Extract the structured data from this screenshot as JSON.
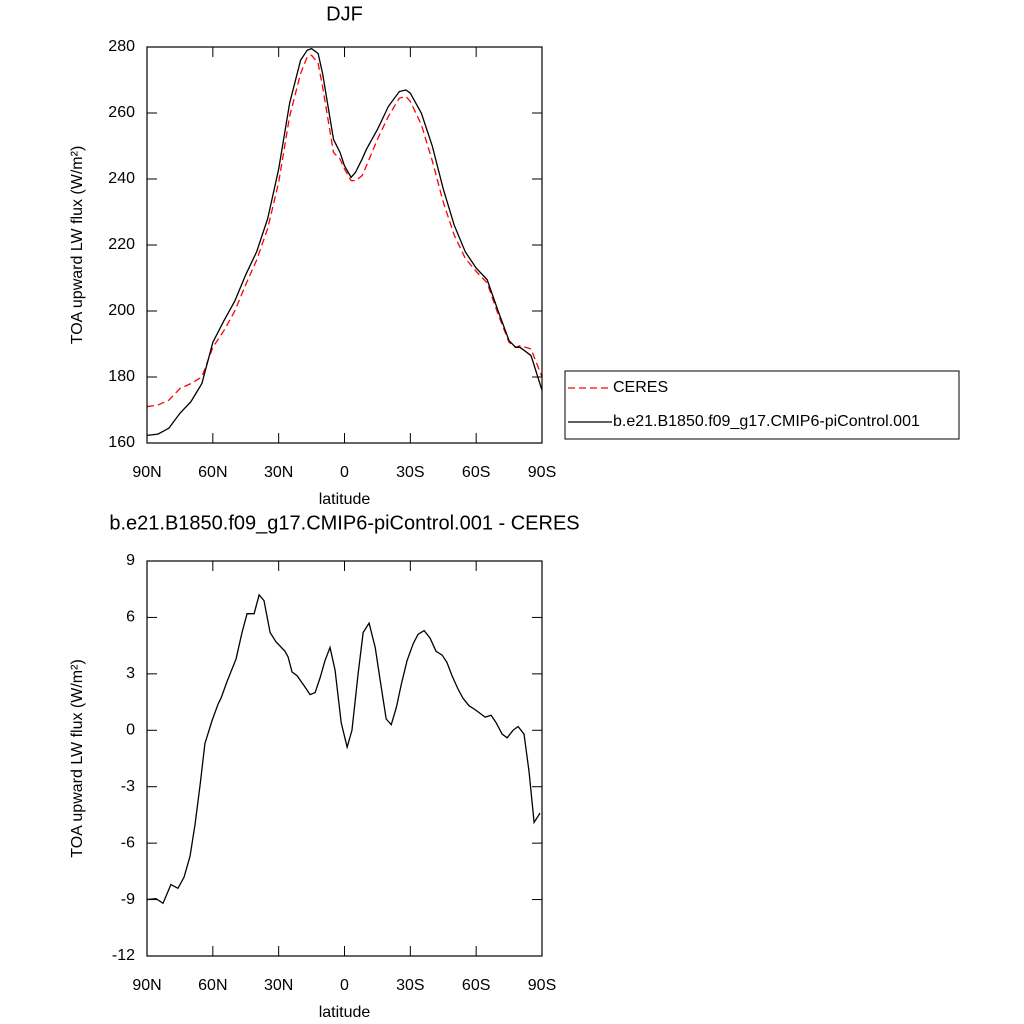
{
  "chart_data": [
    {
      "type": "line",
      "title": "DJF",
      "xlabel": "latitude",
      "ylabel": "TOA upward LW flux (W/m²)",
      "x": [
        90,
        85,
        80,
        75,
        70,
        65,
        60,
        55,
        50,
        45,
        40,
        35,
        30,
        25,
        20,
        17,
        15,
        12,
        10,
        7,
        5,
        2,
        0,
        -3,
        -5,
        -8,
        -10,
        -15,
        -20,
        -25,
        -28,
        -30,
        -35,
        -40,
        -45,
        -50,
        -55,
        -60,
        -65,
        -70,
        -75,
        -78,
        -80,
        -85,
        -90
      ],
      "series": [
        {
          "name": "CERES",
          "color": "#ff0000",
          "line_style": "dashed",
          "values": [
            171,
            171.5,
            173,
            176.5,
            178,
            180,
            189,
            194,
            200,
            208,
            215.5,
            225,
            239,
            259,
            272,
            277,
            277.5,
            275,
            268,
            256,
            248,
            246,
            243,
            239.5,
            239.5,
            241,
            244,
            252,
            259,
            264.5,
            265,
            263.5,
            256.5,
            245.5,
            233,
            223,
            216,
            212,
            208.5,
            199,
            190.5,
            189,
            189.5,
            188.5,
            180
          ]
        },
        {
          "name": "b.e21.B1850.f09_g17.CMIP6-piControl.001",
          "color": "#000000",
          "line_style": "solid",
          "values": [
            162.3,
            162.7,
            164.5,
            169,
            172.5,
            178,
            190.5,
            197,
            203,
            211,
            218,
            228,
            243,
            263,
            276,
            279,
            279.5,
            278,
            272,
            260,
            252,
            248,
            244,
            240.5,
            242,
            246,
            249,
            255,
            262,
            266.5,
            267,
            266,
            260,
            250,
            237,
            226,
            218,
            213,
            209.5,
            200,
            191,
            189,
            189,
            186.5,
            176
          ]
        }
      ],
      "xlim": [
        90,
        -90
      ],
      "xticks": [
        {
          "value": 90,
          "label": "90N"
        },
        {
          "value": 60,
          "label": "60N"
        },
        {
          "value": 30,
          "label": "30N"
        },
        0,
        {
          "value": -30,
          "label": "30S"
        },
        {
          "value": -60,
          "label": "60S"
        },
        {
          "value": -90,
          "label": "90S"
        }
      ],
      "ylim": [
        160,
        280
      ],
      "yticks": [
        160,
        180,
        200,
        220,
        240,
        260,
        280
      ],
      "grid": false,
      "legend": "right"
    },
    {
      "type": "line",
      "title": "b.e21.B1850.f09_g17.CMIP6-piControl.001 - CERES",
      "xlabel": "latitude",
      "ylabel": "TOA upward LW flux (W/m²)",
      "x": [
        90,
        85.9,
        82.7,
        79.1,
        75.9,
        73.1,
        70.4,
        68.1,
        65.8,
        63.6,
        60.4,
        57.6,
        56.3,
        53.5,
        49.4,
        46.7,
        44.4,
        41.2,
        38.9,
        36.7,
        33.9,
        31.2,
        27.1,
        25.7,
        23.9,
        21.6,
        18.0,
        15.7,
        13.4,
        11.1,
        8.9,
        6.6,
        4.3,
        1.5,
        -1.2,
        -3.4,
        -6.2,
        -8.5,
        -11.2,
        -14.0,
        -16.2,
        -19.0,
        -21.3,
        -23.6,
        -25.8,
        -28.5,
        -31.3,
        -33.5,
        -36.3,
        -39.0,
        -41.7,
        -44.5,
        -46.7,
        -49.0,
        -51.7,
        -54.0,
        -56.8,
        -59.5,
        -61.8,
        -64.1,
        -66.8,
        -69.1,
        -71.8,
        -74.1,
        -76.8,
        -79.1,
        -81.8,
        -84.1,
        -86.4,
        -89.1
      ],
      "series": [
        {
          "name": "b.e21.B1850.f09_g17.CMIP6-piControl.001 - CERES",
          "color": "#000000",
          "line_style": "solid",
          "values": [
            -9.0,
            -8.95,
            -9.2,
            -8.2,
            -8.4,
            -7.8,
            -6.7,
            -5,
            -2.9,
            -0.7,
            0.5,
            1.4,
            1.7,
            2.6,
            3.8,
            5.2,
            6.2,
            6.2,
            7.2,
            6.9,
            5.2,
            4.7,
            4.2,
            3.9,
            3.1,
            2.9,
            2.3,
            1.9,
            2.0,
            2.8,
            3.7,
            4.4,
            3.2,
            0.4,
            -0.9,
            0.0,
            3.0,
            5.2,
            5.7,
            4.4,
            2.7,
            0.6,
            0.3,
            1.2,
            2.4,
            3.7,
            4.6,
            5.1,
            5.3,
            4.9,
            4.2,
            4.0,
            3.6,
            2.9,
            2.2,
            1.7,
            1.3,
            1.1,
            0.9,
            0.7,
            0.8,
            0.4,
            -0.2,
            -0.4,
            0.0,
            0.2,
            -0.2,
            -2.2,
            -4.9,
            -4.4
          ]
        }
      ],
      "xlim": [
        90,
        -90
      ],
      "xticks": [
        {
          "value": 90,
          "label": "90N"
        },
        {
          "value": 60,
          "label": "60N"
        },
        {
          "value": 30,
          "label": "30N"
        },
        0,
        {
          "value": -30,
          "label": "30S"
        },
        {
          "value": -60,
          "label": "60S"
        },
        {
          "value": -90,
          "label": "90S"
        }
      ],
      "ylim": [
        -12,
        9
      ],
      "yticks": [
        -12,
        -9,
        -6,
        -3,
        0,
        3,
        6,
        9
      ],
      "grid": false
    }
  ]
}
